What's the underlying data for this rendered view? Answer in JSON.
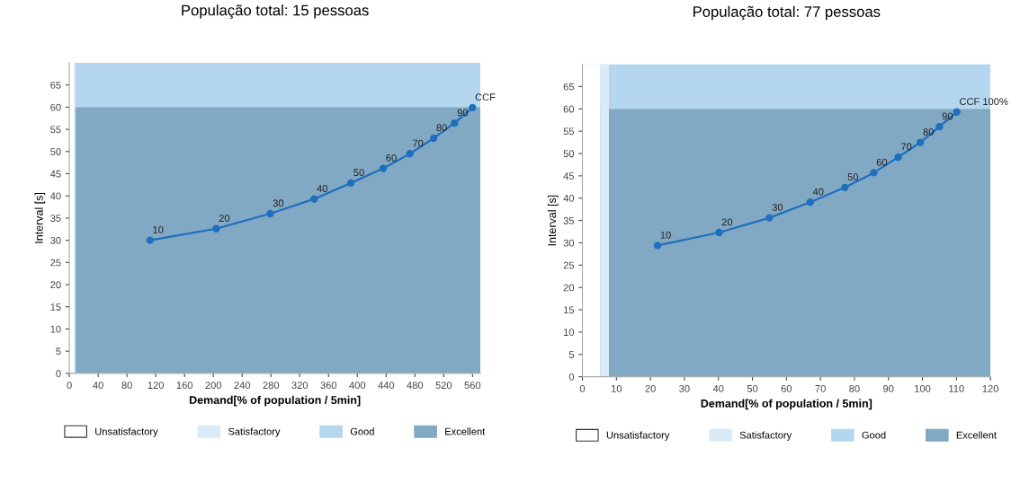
{
  "chart_data": [
    {
      "type": "line",
      "title": "População total: 15 pessoas",
      "xlabel": "Demand[% of population / 5min]",
      "ylabel": "Interval [s]",
      "x": [
        112,
        204,
        279,
        340,
        391,
        436,
        473,
        506,
        535,
        560
      ],
      "series": [
        {
          "color": "#1f6fbf",
          "values": [
            30,
            32.6,
            36.0,
            39.3,
            42.9,
            46.2,
            49.5,
            53.0,
            56.4,
            59.9
          ]
        }
      ],
      "xlim": [
        0,
        571
      ],
      "xticks": [
        0,
        40,
        80,
        120,
        160,
        200,
        240,
        280,
        320,
        360,
        400,
        440,
        480,
        520,
        560
      ],
      "ylim": [
        0,
        70
      ],
      "yticks": [
        0,
        5,
        10,
        15,
        20,
        25,
        30,
        35,
        40,
        45,
        50,
        55,
        60,
        65
      ],
      "marker": "circle",
      "line_style": "solid",
      "grid": false,
      "legend": "bottom",
      "bands": [
        {
          "axis": "x",
          "from": 0,
          "to": 7,
          "label": "Unsatisfactory",
          "color": "#ffffff"
        },
        {
          "axis": "x",
          "from": 7,
          "to": 8.5,
          "label": "Satisfactory",
          "color": "#daeaf6"
        },
        {
          "axis": "y",
          "from": 60,
          "to": 70,
          "label": "Good",
          "color": "#b4d6ee"
        },
        {
          "axis": "y",
          "from": 0,
          "to": 60,
          "label": "Excellent",
          "color": "#82a9c4"
        }
      ],
      "annotations": [
        {
          "text": "10",
          "x": 112,
          "y": 30
        },
        {
          "text": "20",
          "x": 204,
          "y": 32.6
        },
        {
          "text": "30",
          "x": 279,
          "y": 36.0
        },
        {
          "text": "40",
          "x": 340,
          "y": 39.3
        },
        {
          "text": "50",
          "x": 391,
          "y": 42.9
        },
        {
          "text": "60",
          "x": 436,
          "y": 46.2
        },
        {
          "text": "70",
          "x": 473,
          "y": 49.5
        },
        {
          "text": "80",
          "x": 506,
          "y": 53.0
        },
        {
          "text": "90",
          "x": 535,
          "y": 56.4
        },
        {
          "text": "CCF",
          "x": 560,
          "y": 59.9
        }
      ]
    },
    {
      "type": "line",
      "title": "População total: 77 pessoas",
      "xlabel": "Demand[% of population / 5min]",
      "ylabel": "Interval [s]",
      "x": [
        22.1,
        40.2,
        55.0,
        67.0,
        77.2,
        85.7,
        92.9,
        99.4,
        105.0,
        110.1
      ],
      "series": [
        {
          "color": "#1f6fbf",
          "values": [
            29.4,
            32.3,
            35.6,
            39.1,
            42.4,
            45.7,
            49.2,
            52.5,
            56.0,
            59.3
          ]
        }
      ],
      "xlim": [
        0,
        120
      ],
      "xticks": [
        0,
        10,
        20,
        30,
        40,
        50,
        60,
        70,
        80,
        90,
        100,
        110,
        120
      ],
      "ylim": [
        0,
        70
      ],
      "yticks": [
        0,
        5,
        10,
        15,
        20,
        25,
        30,
        35,
        40,
        45,
        50,
        55,
        60,
        65
      ],
      "marker": "circle",
      "line_style": "solid",
      "grid": false,
      "legend": "bottom",
      "bands": [
        {
          "axis": "x",
          "from": 0,
          "to": 5.2,
          "label": "Unsatisfactory",
          "color": "#ffffff"
        },
        {
          "axis": "x",
          "from": 5.2,
          "to": 7.8,
          "label": "Satisfactory",
          "color": "#daeaf6"
        },
        {
          "axis": "y",
          "from": 60,
          "to": 70,
          "label": "Good",
          "color": "#b4d6ee"
        },
        {
          "axis": "y",
          "from": 0,
          "to": 60,
          "label": "Excellent",
          "color": "#82a9c4"
        }
      ],
      "annotations": [
        {
          "text": "10",
          "x": 22.1,
          "y": 29.4
        },
        {
          "text": "20",
          "x": 40.2,
          "y": 32.3
        },
        {
          "text": "30",
          "x": 55.0,
          "y": 35.6
        },
        {
          "text": "40",
          "x": 67.0,
          "y": 39.1
        },
        {
          "text": "50",
          "x": 77.2,
          "y": 42.4
        },
        {
          "text": "60",
          "x": 85.7,
          "y": 45.7
        },
        {
          "text": "70",
          "x": 92.9,
          "y": 49.2
        },
        {
          "text": "80",
          "x": 99.4,
          "y": 52.5
        },
        {
          "text": "90",
          "x": 105.0,
          "y": 56.0
        },
        {
          "text": "CCF 100%",
          "x": 110.1,
          "y": 59.3
        }
      ]
    }
  ]
}
